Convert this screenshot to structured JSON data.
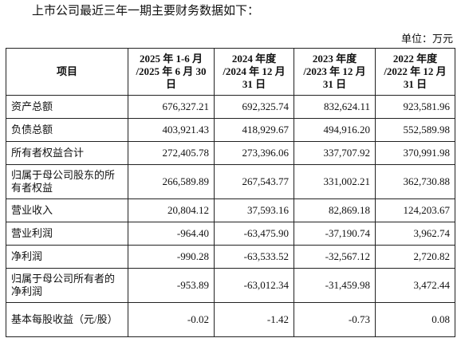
{
  "intro": "上市公司最近三年一期主要财务数据如下：",
  "unit": "单位：万元",
  "table": {
    "header": [
      [
        "项目"
      ],
      [
        "2025 年 1-6 月",
        "/2025 年 6 月 30",
        "日"
      ],
      [
        "2024 年度",
        "/2024 年 12 月",
        "31 日"
      ],
      [
        "2023 年度",
        "/2023 年 12 月",
        "31 日"
      ],
      [
        "2022 年度",
        "/2022 年 12 月",
        "31 日"
      ]
    ],
    "rows": [
      [
        "资产总额",
        "676,327.21",
        "692,325.74",
        "832,624.11",
        "923,581.96"
      ],
      [
        "负债总额",
        "403,921.43",
        "418,929.67",
        "494,916.20",
        "552,589.98"
      ],
      [
        "所有者权益合计",
        "272,405.78",
        "273,396.06",
        "337,707.92",
        "370,991.98"
      ],
      [
        "归属于母公司股东的所有者权益",
        "266,589.89",
        "267,543.77",
        "331,002.21",
        "362,730.88"
      ],
      [
        "营业收入",
        "20,804.12",
        "37,593.16",
        "82,869.18",
        "124,203.67"
      ],
      [
        "营业利润",
        "-964.40",
        "-63,475.90",
        "-37,190.74",
        "3,962.74"
      ],
      [
        "净利润",
        "-990.28",
        "-63,533.52",
        "-32,567.12",
        "2,720.82"
      ],
      [
        "归属于母公司所有者的净利润",
        "-953.89",
        "-63,012.34",
        "-31,459.98",
        "3,472.44"
      ],
      [
        "基本每股收益（元/股）",
        "-0.02",
        "-1.42",
        "-0.73",
        "0.08"
      ]
    ]
  }
}
